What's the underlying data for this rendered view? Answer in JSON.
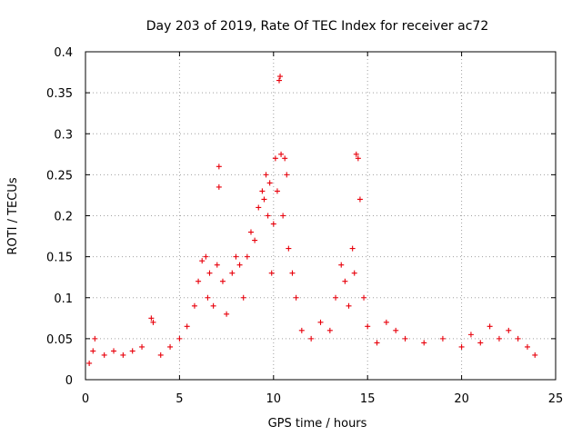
{
  "chart_data": {
    "type": "scatter",
    "title": "Day 203 of 2019, Rate Of TEC Index for receiver ac72",
    "xlabel": "GPS time / hours",
    "ylabel": "ROTI / TECUs",
    "xlim": [
      0,
      25
    ],
    "ylim": [
      0,
      0.4
    ],
    "xticks": [
      "0",
      "5",
      "10",
      "15",
      "20",
      "25"
    ],
    "yticks": [
      "0",
      "0.05",
      "0.1",
      "0.15",
      "0.2",
      "0.25",
      "0.3",
      "0.35",
      "0.4"
    ],
    "grid": true,
    "marker": "plus",
    "color": "#e8000b",
    "series": [
      {
        "x": [
          0.2,
          0.4,
          0.5,
          1.0,
          1.5,
          2.0,
          2.5,
          3.0,
          3.5,
          3.6,
          4.0,
          4.5,
          5.0,
          5.4,
          5.8,
          6.0,
          6.2,
          6.4,
          6.5,
          6.6,
          6.8,
          7.0,
          7.1,
          7.1,
          7.3,
          7.5,
          7.8,
          8.0,
          8.2,
          8.4,
          8.6,
          8.8,
          9.0,
          9.2,
          9.4,
          9.5,
          9.6,
          9.7,
          9.8,
          9.9,
          10.0,
          10.1,
          10.2,
          10.3,
          10.35,
          10.4,
          10.5,
          10.6,
          10.7,
          10.8,
          11.0,
          11.2,
          11.5,
          12.0,
          12.5,
          13.0,
          13.3,
          13.6,
          13.8,
          14.0,
          14.2,
          14.3,
          14.4,
          14.5,
          14.6,
          14.8,
          15.0,
          15.5,
          16.0,
          16.5,
          17.0,
          18.0,
          19.0,
          20.0,
          20.5,
          21.0,
          21.5,
          22.0,
          22.5,
          23.0,
          23.5,
          23.9
        ],
        "y": [
          0.02,
          0.035,
          0.05,
          0.03,
          0.035,
          0.03,
          0.035,
          0.04,
          0.075,
          0.07,
          0.03,
          0.04,
          0.05,
          0.065,
          0.09,
          0.12,
          0.145,
          0.15,
          0.1,
          0.13,
          0.09,
          0.14,
          0.26,
          0.235,
          0.12,
          0.08,
          0.13,
          0.15,
          0.14,
          0.1,
          0.15,
          0.18,
          0.17,
          0.21,
          0.23,
          0.22,
          0.25,
          0.2,
          0.24,
          0.13,
          0.19,
          0.27,
          0.23,
          0.365,
          0.37,
          0.275,
          0.2,
          0.27,
          0.25,
          0.16,
          0.13,
          0.1,
          0.06,
          0.05,
          0.07,
          0.06,
          0.1,
          0.14,
          0.12,
          0.09,
          0.16,
          0.13,
          0.275,
          0.27,
          0.22,
          0.1,
          0.065,
          0.045,
          0.07,
          0.06,
          0.05,
          0.045,
          0.05,
          0.04,
          0.055,
          0.045,
          0.065,
          0.05,
          0.06,
          0.05,
          0.04,
          0.03
        ]
      }
    ]
  }
}
